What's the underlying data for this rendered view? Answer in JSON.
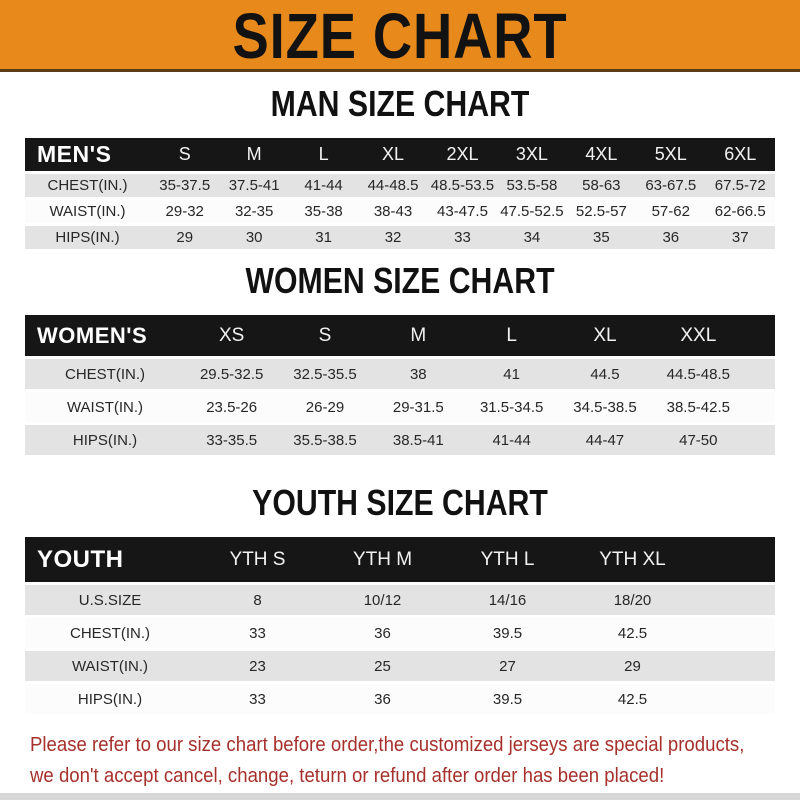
{
  "banner": {
    "title": "SIZE CHART",
    "bg_color": "#E8891C",
    "text_color": "#121212"
  },
  "colors": {
    "header_bar": "#161616",
    "row_gray": "#E3E3E3",
    "row_white": "#FCFCFC",
    "footer_red": "#A6302B"
  },
  "sections": [
    {
      "heading": "MAN SIZE CHART",
      "table": {
        "header_label": "MEN'S",
        "columns": [
          "S",
          "M",
          "L",
          "XL",
          "2XL",
          "3XL",
          "4XL",
          "5XL",
          "6XL"
        ],
        "rows": [
          {
            "label": "CHEST(IN.)",
            "values": [
              "35-37.5",
              "37.5-41",
              "41-44",
              "44-48.5",
              "48.5-53.5",
              "53.5-58",
              "58-63",
              "63-67.5",
              "67.5-72"
            ]
          },
          {
            "label": "WAIST(IN.)",
            "values": [
              "29-32",
              "32-35",
              "35-38",
              "38-43",
              "43-47.5",
              "47.5-52.5",
              "52.5-57",
              "57-62",
              "62-66.5"
            ]
          },
          {
            "label": "HIPS(IN.)",
            "values": [
              "29",
              "30",
              "31",
              "32",
              "33",
              "34",
              "35",
              "36",
              "37"
            ]
          }
        ]
      }
    },
    {
      "heading": "WOMEN SIZE CHART",
      "table": {
        "header_label": "WOMEN'S",
        "columns": [
          "XS",
          "S",
          "M",
          "L",
          "XL",
          "XXL"
        ],
        "rows": [
          {
            "label": "CHEST(IN.)",
            "values": [
              "29.5-32.5",
              "32.5-35.5",
              "38",
              "41",
              "44.5",
              "44.5-48.5"
            ]
          },
          {
            "label": "WAIST(IN.)",
            "values": [
              "23.5-26",
              "26-29",
              "29-31.5",
              "31.5-34.5",
              "34.5-38.5",
              "38.5-42.5"
            ]
          },
          {
            "label": "HIPS(IN.)",
            "values": [
              "33-35.5",
              "35.5-38.5",
              "38.5-41",
              "41-44",
              "44-47",
              "47-50"
            ]
          }
        ]
      }
    },
    {
      "heading": "YOUTH SIZE CHART",
      "table": {
        "header_label": "YOUTH",
        "columns": [
          "YTH S",
          "YTH M",
          "YTH L",
          "YTH XL"
        ],
        "rows": [
          {
            "label": "U.S.SIZE",
            "values": [
              "8",
              "10/12",
              "14/16",
              "18/20"
            ]
          },
          {
            "label": "CHEST(IN.)",
            "values": [
              "33",
              "36",
              "39.5",
              "42.5"
            ]
          },
          {
            "label": "WAIST(IN.)",
            "values": [
              "23",
              "25",
              "27",
              "29"
            ]
          },
          {
            "label": "HIPS(IN.)",
            "values": [
              "33",
              "36",
              "39.5",
              "42.5"
            ]
          }
        ]
      }
    }
  ],
  "footer": {
    "line1": "Please refer to our size chart before order,the customized jerseys are special products,",
    "line2": "we don't accept cancel, change, teturn or refund after order has been placed!"
  }
}
